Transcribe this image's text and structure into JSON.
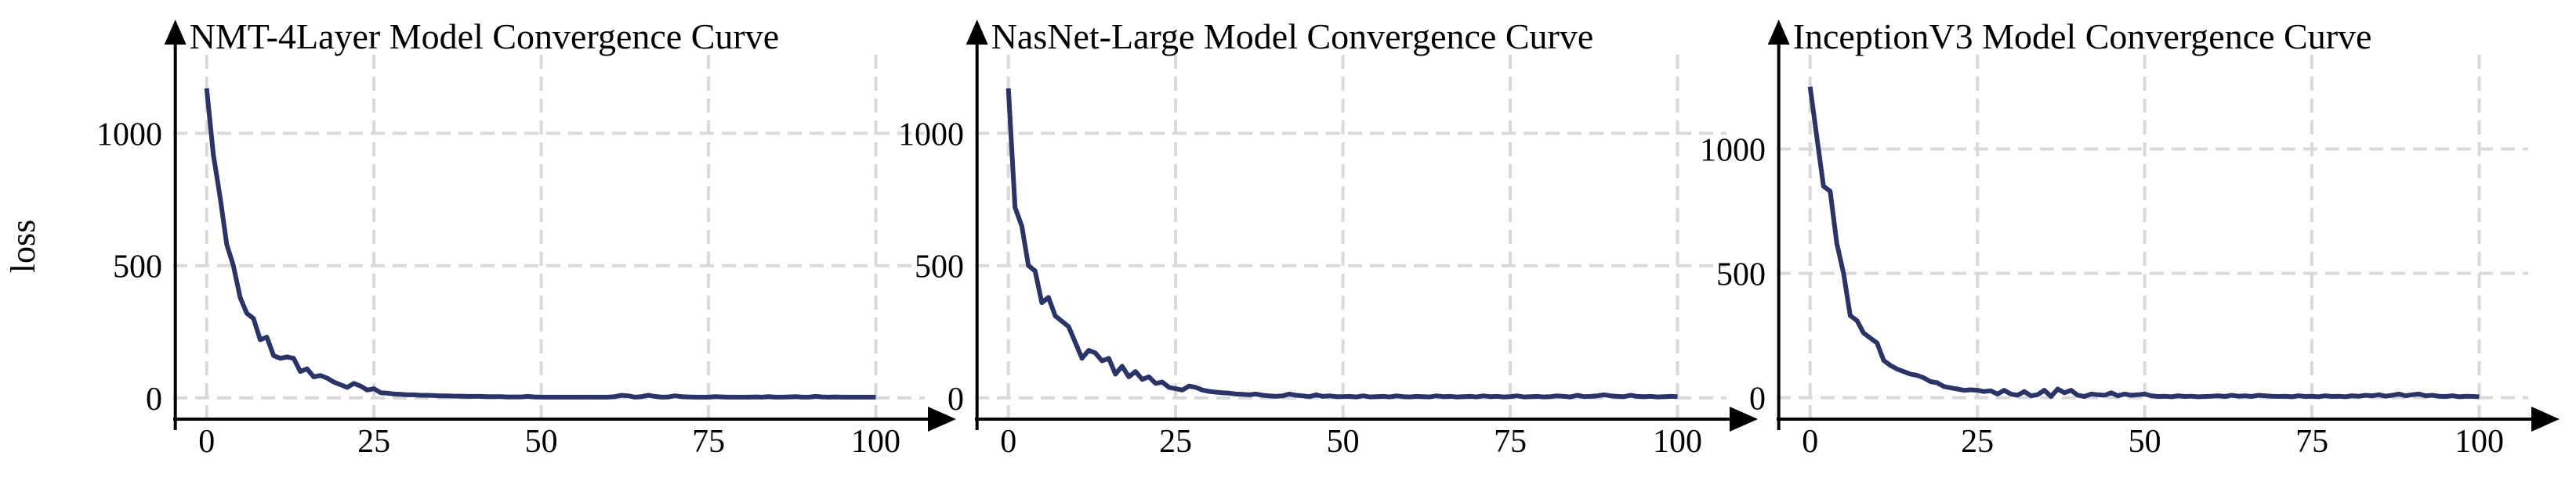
{
  "chart_data": [
    {
      "type": "line",
      "title": "NMT-4Layer Model Convergence Curve",
      "ylabel": "loss",
      "x": [
        0,
        1,
        2,
        3,
        4,
        5,
        6,
        7,
        8,
        9,
        10,
        11,
        12,
        13,
        14,
        15,
        16,
        17,
        18,
        19,
        20,
        21,
        22,
        23,
        24,
        25,
        26,
        27,
        28,
        29,
        30,
        31,
        32,
        33,
        34,
        35,
        36,
        37,
        38,
        39,
        40,
        41,
        42,
        43,
        44,
        45,
        46,
        47,
        48,
        49,
        50,
        51,
        52,
        53,
        54,
        55,
        56,
        57,
        58,
        59,
        60,
        61,
        62,
        63,
        64,
        65,
        66,
        67,
        68,
        69,
        70,
        71,
        72,
        73,
        74,
        75,
        76,
        77,
        78,
        79,
        80,
        81,
        82,
        83,
        84,
        85,
        86,
        87,
        88,
        89,
        90,
        91,
        92,
        93,
        94,
        95,
        96,
        97,
        98,
        99,
        100
      ],
      "values": [
        1170,
        920,
        760,
        580,
        500,
        380,
        320,
        300,
        220,
        230,
        160,
        150,
        155,
        150,
        100,
        110,
        80,
        85,
        75,
        60,
        50,
        40,
        55,
        45,
        30,
        35,
        20,
        18,
        15,
        14,
        12,
        12,
        10,
        10,
        9,
        8,
        8,
        7,
        7,
        6,
        6,
        6,
        5,
        5,
        5,
        4,
        4,
        4,
        6,
        4,
        3,
        3,
        3,
        3,
        3,
        3,
        3,
        3,
        3,
        3,
        3,
        5,
        10,
        8,
        3,
        5,
        10,
        6,
        3,
        4,
        8,
        5,
        4,
        3,
        3,
        3,
        5,
        4,
        3,
        3,
        3,
        3,
        4,
        3,
        5,
        3,
        3,
        4,
        5,
        3,
        3,
        6,
        4,
        3,
        4,
        3,
        3,
        3,
        3,
        3,
        3
      ],
      "color": "#2b3467",
      "xlim": [
        -5,
        112
      ],
      "ylim": [
        -80,
        1430
      ],
      "xticks": [
        0,
        25,
        50,
        75,
        100
      ],
      "yticks": [
        0,
        500,
        1000
      ],
      "grid": true
    },
    {
      "type": "line",
      "title": "NasNet-Large Model Convergence Curve",
      "x": [
        0,
        1,
        2,
        3,
        4,
        5,
        6,
        7,
        8,
        9,
        10,
        11,
        12,
        13,
        14,
        15,
        16,
        17,
        18,
        19,
        20,
        21,
        22,
        23,
        24,
        25,
        26,
        27,
        28,
        29,
        30,
        31,
        32,
        33,
        34,
        35,
        36,
        37,
        38,
        39,
        40,
        41,
        42,
        43,
        44,
        45,
        46,
        47,
        48,
        49,
        50,
        51,
        52,
        53,
        54,
        55,
        56,
        57,
        58,
        59,
        60,
        61,
        62,
        63,
        64,
        65,
        66,
        67,
        68,
        69,
        70,
        71,
        72,
        73,
        74,
        75,
        76,
        77,
        78,
        79,
        80,
        81,
        82,
        83,
        84,
        85,
        86,
        87,
        88,
        89,
        90,
        91,
        92,
        93,
        94,
        95,
        96,
        97,
        98,
        99,
        100
      ],
      "values": [
        1170,
        720,
        650,
        500,
        480,
        360,
        380,
        310,
        290,
        270,
        210,
        150,
        180,
        170,
        140,
        150,
        90,
        120,
        80,
        100,
        70,
        80,
        55,
        60,
        40,
        35,
        30,
        45,
        40,
        30,
        25,
        22,
        20,
        18,
        15,
        14,
        12,
        15,
        10,
        8,
        6,
        8,
        15,
        10,
        8,
        5,
        12,
        6,
        8,
        5,
        5,
        6,
        4,
        8,
        4,
        5,
        6,
        4,
        8,
        5,
        4,
        6,
        5,
        4,
        8,
        5,
        6,
        4,
        5,
        6,
        4,
        8,
        5,
        6,
        4,
        5,
        8,
        4,
        5,
        6,
        4,
        5,
        8,
        6,
        4,
        10,
        5,
        6,
        8,
        12,
        8,
        6,
        5,
        10,
        6,
        5,
        6,
        4,
        5,
        6,
        5
      ],
      "color": "#2b3467",
      "xlim": [
        -5,
        112
      ],
      "ylim": [
        -80,
        1430
      ],
      "xticks": [
        0,
        25,
        50,
        75,
        100
      ],
      "yticks": [
        0,
        500,
        1000
      ],
      "grid": true
    },
    {
      "type": "line",
      "title": "InceptionV3 Model Convergence Curve",
      "x": [
        0,
        1,
        2,
        3,
        4,
        5,
        6,
        7,
        8,
        9,
        10,
        11,
        12,
        13,
        14,
        15,
        16,
        17,
        18,
        19,
        20,
        21,
        22,
        23,
        24,
        25,
        26,
        27,
        28,
        29,
        30,
        31,
        32,
        33,
        34,
        35,
        36,
        37,
        38,
        39,
        40,
        41,
        42,
        43,
        44,
        45,
        46,
        47,
        48,
        49,
        50,
        51,
        52,
        53,
        54,
        55,
        56,
        57,
        58,
        59,
        60,
        61,
        62,
        63,
        64,
        65,
        66,
        67,
        68,
        69,
        70,
        71,
        72,
        73,
        74,
        75,
        76,
        77,
        78,
        79,
        80,
        81,
        82,
        83,
        84,
        85,
        86,
        87,
        88,
        89,
        90,
        91,
        92,
        93,
        94,
        95,
        96,
        97,
        98,
        99,
        100
      ],
      "values": [
        1250,
        1050,
        850,
        830,
        620,
        500,
        330,
        310,
        260,
        240,
        220,
        150,
        130,
        115,
        105,
        95,
        90,
        80,
        65,
        60,
        45,
        40,
        35,
        30,
        32,
        30,
        25,
        28,
        15,
        30,
        15,
        10,
        25,
        8,
        12,
        30,
        5,
        35,
        20,
        30,
        10,
        5,
        15,
        12,
        10,
        20,
        8,
        15,
        10,
        12,
        15,
        8,
        5,
        6,
        4,
        8,
        5,
        6,
        4,
        5,
        6,
        8,
        5,
        10,
        6,
        8,
        5,
        10,
        8,
        6,
        5,
        6,
        4,
        8,
        5,
        6,
        4,
        8,
        5,
        6,
        4,
        8,
        6,
        10,
        8,
        12,
        6,
        10,
        15,
        8,
        12,
        15,
        8,
        10,
        6,
        5,
        8,
        4,
        6,
        5,
        4
      ],
      "color": "#2b3467",
      "xlim": [
        -5,
        112
      ],
      "ylim": [
        -86,
        1520
      ],
      "xticks": [
        0,
        25,
        50,
        75,
        100
      ],
      "yticks": [
        0,
        500,
        1000
      ],
      "grid": true
    }
  ]
}
